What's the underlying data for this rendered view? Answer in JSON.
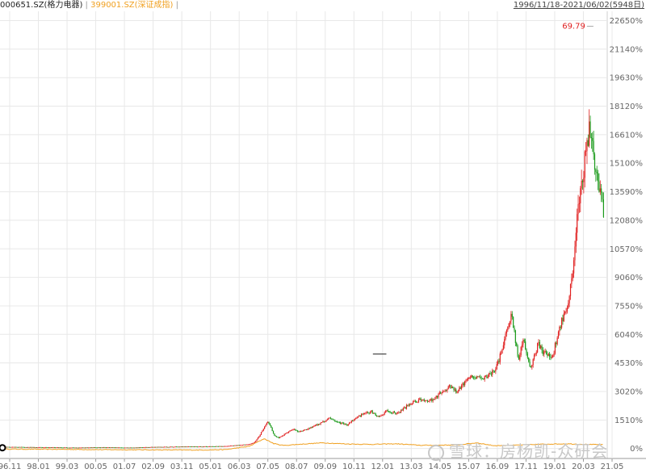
{
  "header": {
    "main_symbol": "000651.SZ(格力电器)",
    "separator": "|",
    "compare_symbol": "399001.SZ(深证成指)",
    "separator2": "|",
    "date_range": "1996/11/18-2021/06/02(5948日)"
  },
  "watermark": "雪球：房杨凯-众研会",
  "annotation": {
    "label": "69.79",
    "color": "#e02020"
  },
  "colors": {
    "up": "#e02020",
    "down": "#1a9a1a",
    "compare": "#f0a020",
    "grid": "#e8e8e8",
    "axis": "#666666"
  },
  "chart_data": {
    "type": "line",
    "y_unit": "%",
    "y_ticks": [
      0,
      1510,
      3020,
      4530,
      6040,
      7550,
      9060,
      10570,
      12080,
      13590,
      15100,
      16610,
      18120,
      19630,
      21140,
      22650
    ],
    "y_tick_labels": [
      "0%",
      "1510%",
      "3020%",
      "4530%",
      "6040%",
      "7550%",
      "9060%",
      "10570%",
      "12080%",
      "13590%",
      "15100%",
      "16610%",
      "18120%",
      "19630%",
      "21140%",
      "22650%"
    ],
    "ylim": [
      -100,
      22800
    ],
    "x_ticks": [
      "96.11",
      "98.01",
      "99.03",
      "00.05",
      "01.07",
      "02.09",
      "03.11",
      "05.01",
      "06.03",
      "07.05",
      "08.07",
      "09.09",
      "10.11",
      "12.01",
      "13.03",
      "14.05",
      "15.07",
      "16.09",
      "17.11",
      "19.01",
      "20.03",
      "21.05"
    ],
    "grid": true,
    "series": [
      {
        "name": "000651.SZ(格力电器)",
        "style": "candlestick",
        "t": [
          0,
          0.9,
          1.3,
          2,
          3,
          4,
          5,
          6,
          7,
          8,
          9,
          10,
          10.2,
          10.4,
          10.6,
          10.75,
          10.9,
          11.0,
          11.2,
          11.5,
          11.8,
          12,
          12.3,
          12.6,
          13,
          13.3,
          13.6,
          14,
          14.3,
          14.6,
          15,
          15.3,
          15.6,
          16,
          16.3,
          16.6,
          17,
          17.3,
          17.6,
          17.9,
          18.2,
          18.5,
          18.8,
          19.1,
          19.5,
          19.8,
          20.1,
          20.4,
          20.7,
          21,
          21.2,
          21.5,
          21.8,
          22.1,
          22.4,
          22.7,
          23,
          23.2,
          23.4,
          23.6,
          23.8,
          24,
          24.1,
          24.25,
          24.4,
          24.5
        ],
        "y": [
          80,
          70,
          60,
          60,
          40,
          60,
          40,
          70,
          90,
          100,
          120,
          220,
          320,
          650,
          1100,
          1400,
          1050,
          700,
          560,
          800,
          1050,
          900,
          1000,
          1150,
          1400,
          1600,
          1400,
          1250,
          1550,
          1800,
          1950,
          1650,
          2000,
          1850,
          2100,
          2400,
          2600,
          2500,
          2700,
          3000,
          3300,
          3000,
          3500,
          3800,
          3650,
          3900,
          4300,
          5500,
          7200,
          4700,
          5800,
          4200,
          5500,
          5000,
          4900,
          6500,
          7500,
          9000,
          12000,
          14000,
          16500,
          17100,
          15000,
          14000,
          13500,
          12600
        ]
      },
      {
        "name": "399001.SZ(深证成指)",
        "style": "line",
        "t": [
          0,
          2,
          4,
          6,
          8,
          9,
          10,
          10.6,
          11,
          11.4,
          12,
          13,
          14,
          15,
          16,
          17,
          17.8,
          18.5,
          19.3,
          20,
          21,
          22,
          23,
          24,
          24.5
        ],
        "y": [
          -30,
          -40,
          -60,
          -70,
          -80,
          -60,
          120,
          520,
          260,
          160,
          220,
          300,
          240,
          220,
          250,
          170,
          180,
          190,
          300,
          150,
          180,
          230,
          250,
          210,
          200
        ]
      }
    ]
  }
}
